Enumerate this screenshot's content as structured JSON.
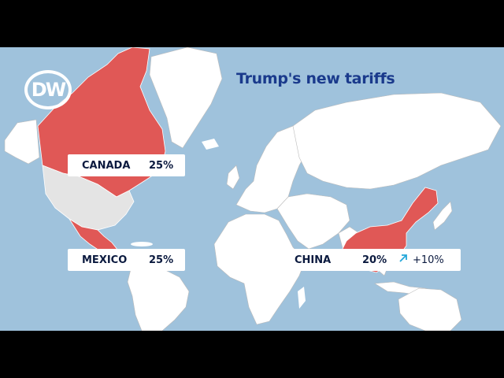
{
  "logo": {
    "text": "DW"
  },
  "title": "Trump's new tariffs",
  "tariffs": [
    {
      "country": "CANADA",
      "rate": "25%"
    },
    {
      "country": "MEXICO",
      "rate": "25%"
    },
    {
      "country": "CHINA",
      "rate": "20%",
      "change_icon": "arrow-up-right-icon",
      "change": "+10%"
    }
  ],
  "colors": {
    "ocean": "#9fc2dc",
    "land": "#ffffff",
    "land_grey": "#e4e4e4",
    "highlight": "#e05856",
    "title": "#1a3a8c",
    "arrow": "#23a7d9"
  }
}
